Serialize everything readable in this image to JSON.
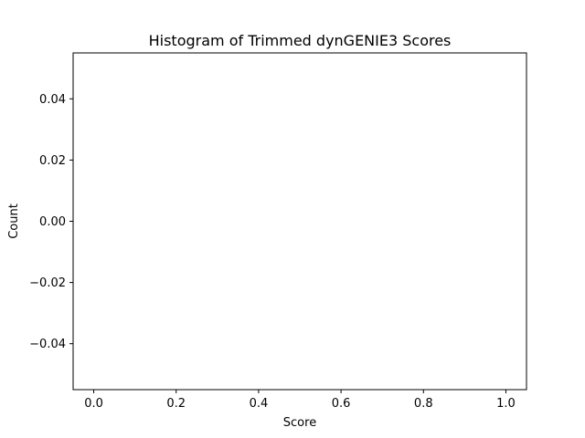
{
  "chart_data": {
    "type": "bar",
    "title": "Histogram of Trimmed dynGENIE3 Scores",
    "xlabel": "Score",
    "ylabel": "Count",
    "xlim": [
      -0.05,
      1.05
    ],
    "ylim": [
      -0.055,
      0.055
    ],
    "xticks": [
      0.0,
      0.2,
      0.4,
      0.6,
      0.8,
      1.0
    ],
    "xtick_labels": [
      "0.0",
      "0.2",
      "0.4",
      "0.6",
      "0.8",
      "1.0"
    ],
    "yticks": [
      0.04,
      0.02,
      0.0,
      -0.02,
      -0.04
    ],
    "ytick_labels": [
      "0.04",
      "0.02",
      "0.00",
      "−0.02",
      "−0.04"
    ],
    "categories": [],
    "values": [],
    "grid": false,
    "colors": {
      "axes": "#000000",
      "background": "#ffffff",
      "bar": "#1f77b4"
    }
  }
}
